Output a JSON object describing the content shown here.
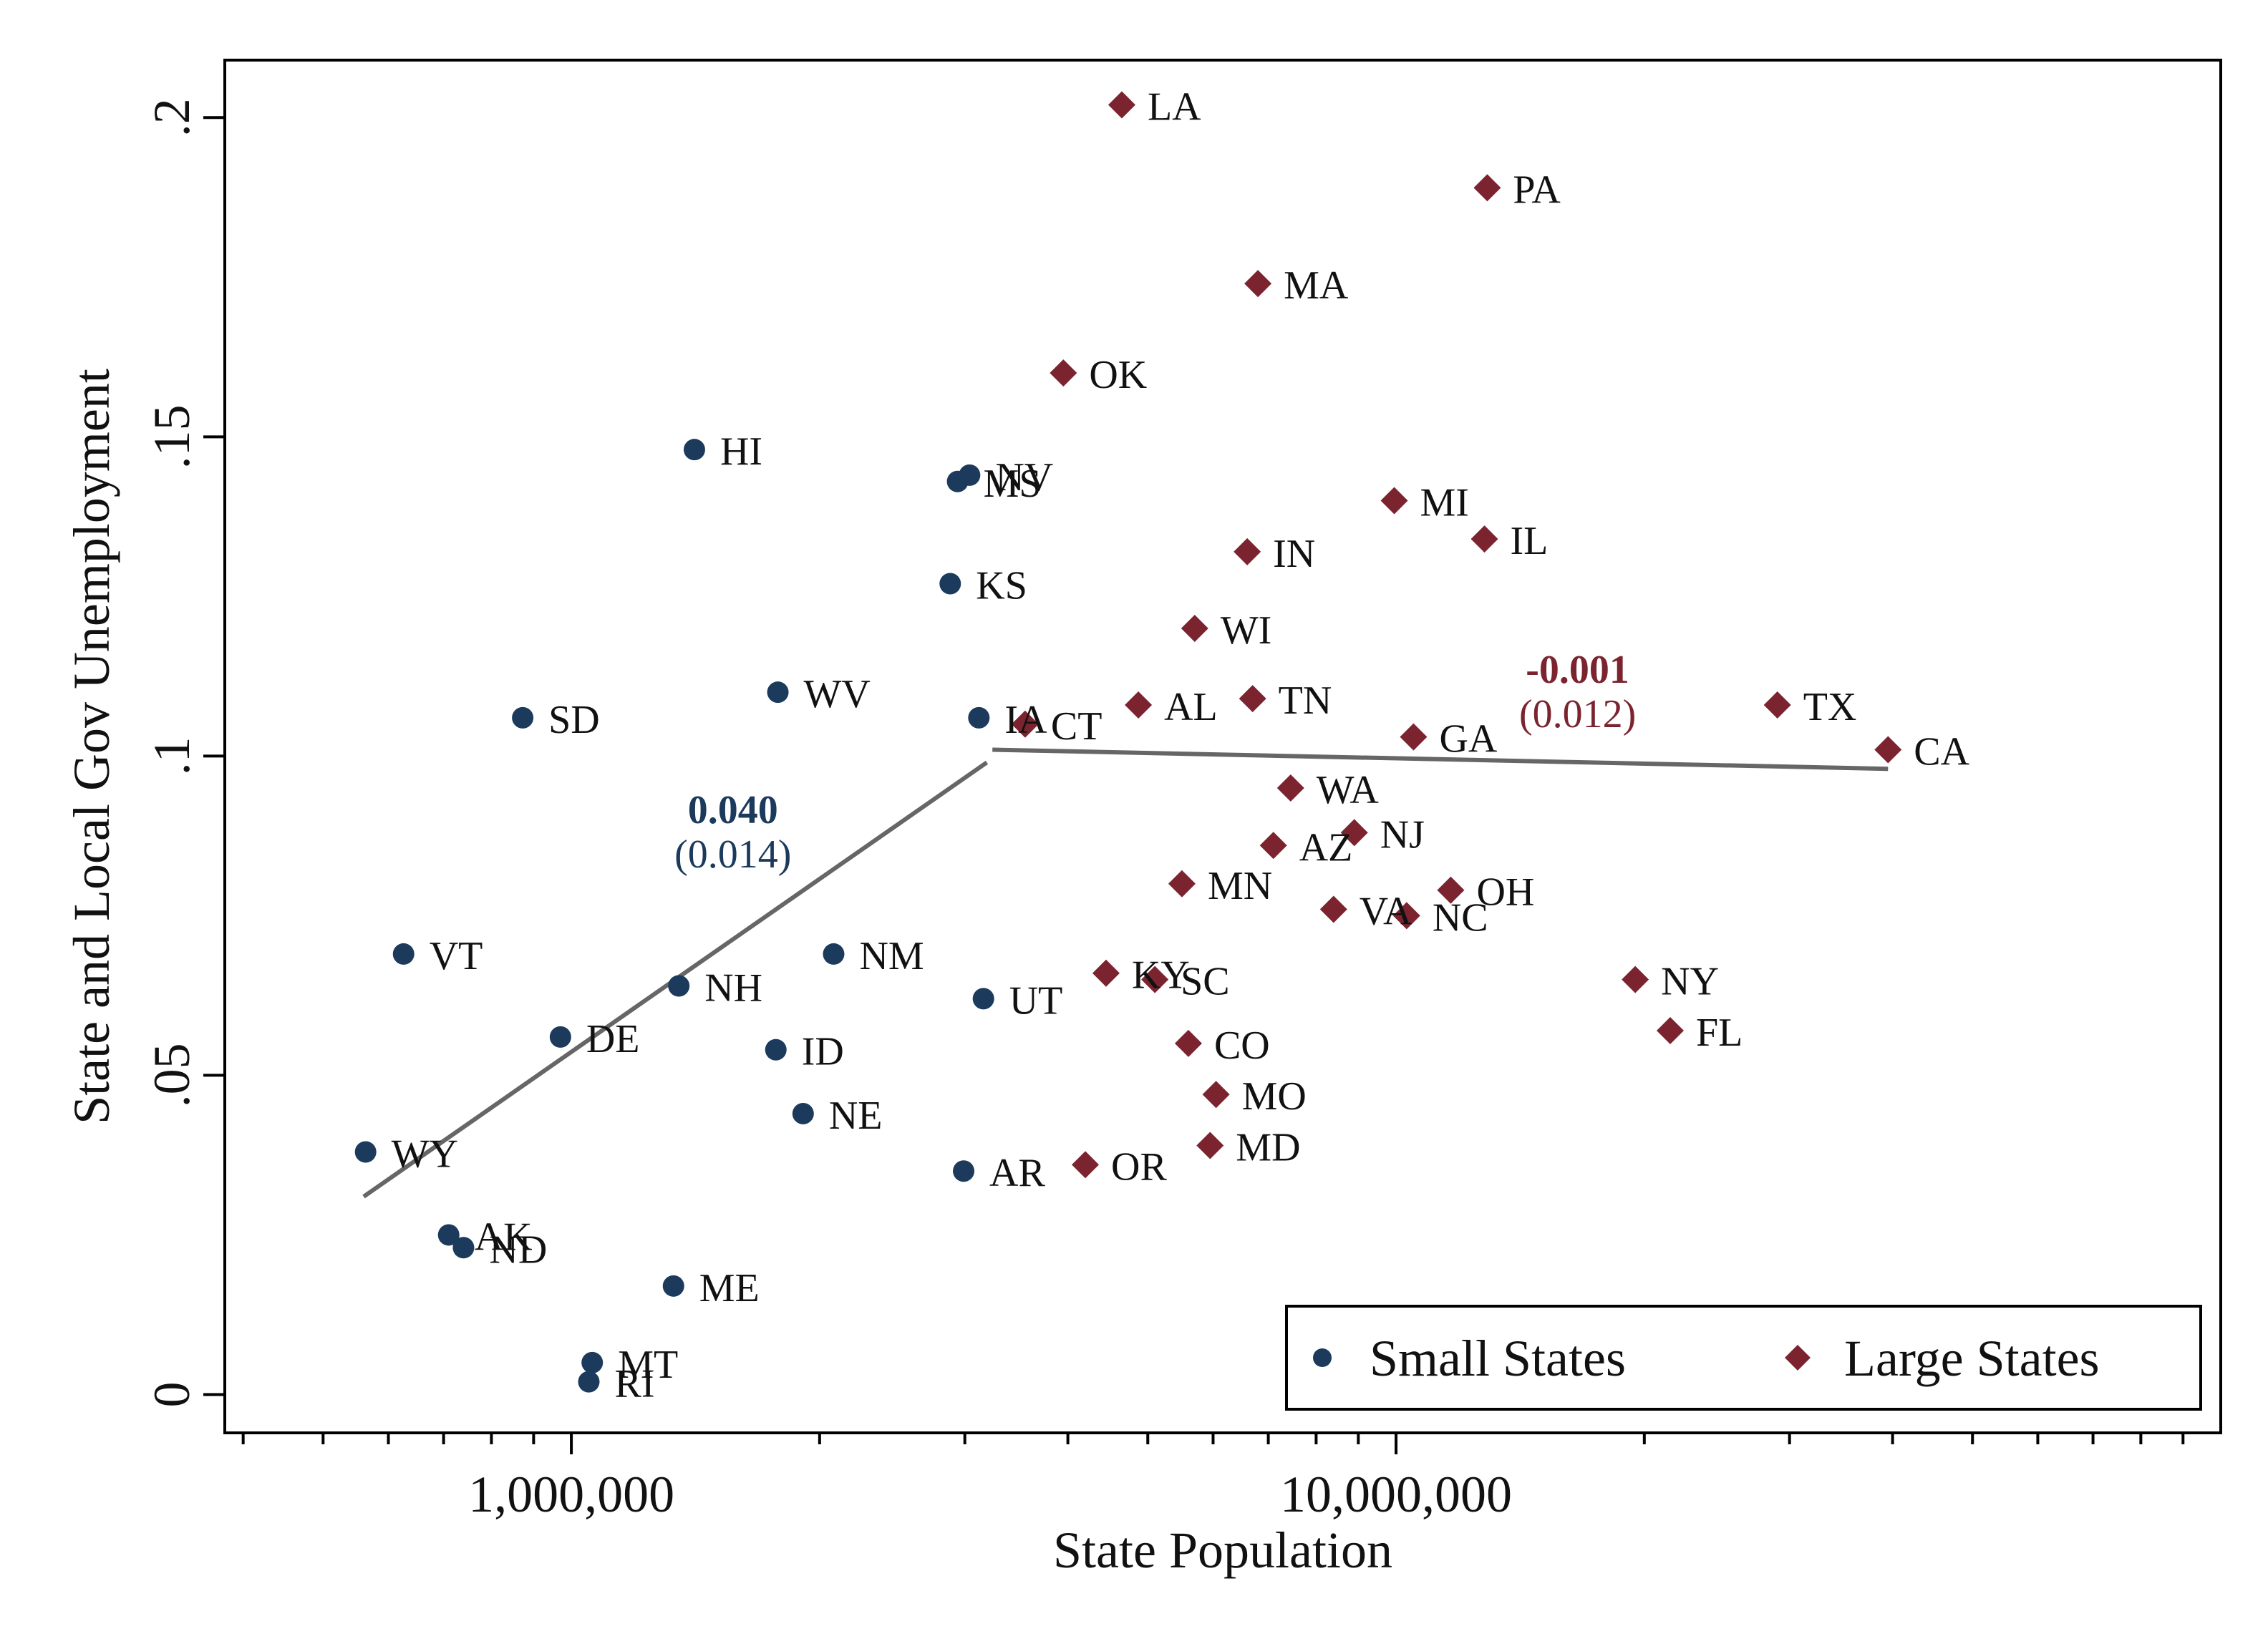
{
  "chart_data": {
    "type": "scatter",
    "title": "",
    "xlabel": "State Population",
    "ylabel": "State and Local Gov Unemployment",
    "xscale": "log",
    "xlim": [
      380000,
      100000000
    ],
    "ylim": [
      -0.006,
      0.209
    ],
    "xticks": [
      1000000,
      10000000
    ],
    "xtick_labels": [
      "1,000,000",
      "10,000,000"
    ],
    "yticks": [
      0,
      0.05,
      0.1,
      0.15,
      0.2
    ],
    "ytick_labels": [
      "0",
      ".05",
      ".1",
      ".15",
      ".2"
    ],
    "grid": false,
    "legend_position": "bottom-right",
    "colors": {
      "small": "#1b3a5c",
      "large": "#7b2430",
      "fit": "#666666"
    },
    "series": [
      {
        "name": "Small States",
        "marker": "circle",
        "points": [
          {
            "label": "WY",
            "x": 563000,
            "y": 0.038
          },
          {
            "label": "VT",
            "x": 626000,
            "y": 0.069
          },
          {
            "label": "AK",
            "x": 710000,
            "y": 0.025
          },
          {
            "label": "ND",
            "x": 740000,
            "y": 0.023
          },
          {
            "label": "SD",
            "x": 873000,
            "y": 0.106
          },
          {
            "label": "DE",
            "x": 970000,
            "y": 0.056
          },
          {
            "label": "MT",
            "x": 1060000,
            "y": 0.005
          },
          {
            "label": "RI",
            "x": 1050000,
            "y": 0.002
          },
          {
            "label": "NH",
            "x": 1350000,
            "y": 0.064
          },
          {
            "label": "ME",
            "x": 1330000,
            "y": 0.017
          },
          {
            "label": "HI",
            "x": 1410000,
            "y": 0.148
          },
          {
            "label": "ID",
            "x": 1770000,
            "y": 0.054
          },
          {
            "label": "WV",
            "x": 1780000,
            "y": 0.11
          },
          {
            "label": "NE",
            "x": 1910000,
            "y": 0.044
          },
          {
            "label": "NM",
            "x": 2080000,
            "y": 0.069
          },
          {
            "label": "KS",
            "x": 2880000,
            "y": 0.127
          },
          {
            "label": "MS",
            "x": 2940000,
            "y": 0.143
          },
          {
            "label": "NV",
            "x": 3040000,
            "y": 0.144
          },
          {
            "label": "AR",
            "x": 2990000,
            "y": 0.035
          },
          {
            "label": "IA",
            "x": 3120000,
            "y": 0.106
          },
          {
            "label": "UT",
            "x": 3160000,
            "y": 0.062
          }
        ]
      },
      {
        "name": "Large States",
        "marker": "diamond",
        "points": [
          {
            "label": "CT",
            "x": 3550000,
            "y": 0.105
          },
          {
            "label": "OK",
            "x": 3950000,
            "y": 0.16
          },
          {
            "label": "OR",
            "x": 4200000,
            "y": 0.036
          },
          {
            "label": "LA",
            "x": 4650000,
            "y": 0.202
          },
          {
            "label": "KY",
            "x": 4450000,
            "y": 0.066
          },
          {
            "label": "AL",
            "x": 4870000,
            "y": 0.108
          },
          {
            "label": "SC",
            "x": 5100000,
            "y": 0.065
          },
          {
            "label": "CO",
            "x": 5600000,
            "y": 0.055
          },
          {
            "label": "MN",
            "x": 5500000,
            "y": 0.08
          },
          {
            "label": "WI",
            "x": 5700000,
            "y": 0.12
          },
          {
            "label": "MD",
            "x": 5950000,
            "y": 0.039
          },
          {
            "label": "MO",
            "x": 6050000,
            "y": 0.047
          },
          {
            "label": "IN",
            "x": 6600000,
            "y": 0.132
          },
          {
            "label": "TN",
            "x": 6700000,
            "y": 0.109
          },
          {
            "label": "MA",
            "x": 6800000,
            "y": 0.174
          },
          {
            "label": "AZ",
            "x": 7100000,
            "y": 0.086
          },
          {
            "label": "WA",
            "x": 7450000,
            "y": 0.095
          },
          {
            "label": "VA",
            "x": 8400000,
            "y": 0.076
          },
          {
            "label": "NJ",
            "x": 8900000,
            "y": 0.088
          },
          {
            "label": "MI",
            "x": 9950000,
            "y": 0.14
          },
          {
            "label": "NC",
            "x": 10300000,
            "y": 0.075
          },
          {
            "label": "GA",
            "x": 10500000,
            "y": 0.103
          },
          {
            "label": "OH",
            "x": 11650000,
            "y": 0.079
          },
          {
            "label": "IL",
            "x": 12800000,
            "y": 0.134
          },
          {
            "label": "PA",
            "x": 12900000,
            "y": 0.189
          },
          {
            "label": "NY",
            "x": 19500000,
            "y": 0.065
          },
          {
            "label": "FL",
            "x": 21500000,
            "y": 0.057
          },
          {
            "label": "TX",
            "x": 29000000,
            "y": 0.108
          },
          {
            "label": "CA",
            "x": 39500000,
            "y": 0.101
          }
        ]
      }
    ],
    "fit_lines": [
      {
        "group": "Small States",
        "x": [
          560000,
          3190000
        ],
        "y": [
          0.031,
          0.099
        ]
      },
      {
        "group": "Large States",
        "x": [
          3240000,
          39500000
        ],
        "y": [
          0.101,
          0.098
        ]
      }
    ],
    "annotations": [
      {
        "group": "Small States",
        "coef": "0.040",
        "se": "(0.014)",
        "x": 1570000,
        "y": 0.0895
      },
      {
        "group": "Large States",
        "coef": "-0.001",
        "se": "(0.012)",
        "x": 16600000,
        "y": 0.1115
      }
    ]
  }
}
